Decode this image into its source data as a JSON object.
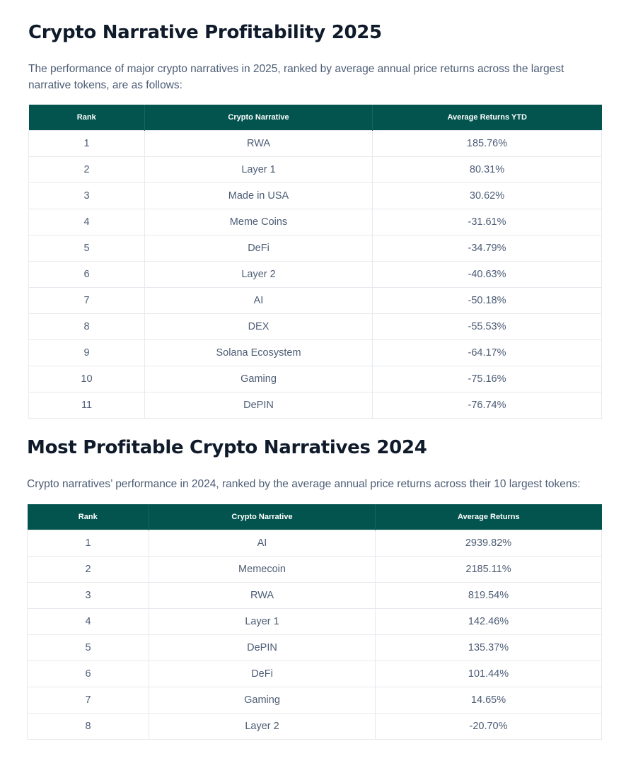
{
  "section1": {
    "title": "Crypto Narrative Profitability 2025",
    "intro": "The performance of major crypto narratives in 2025, ranked by average annual price returns across the largest narrative tokens, are as follows:",
    "headers": [
      "Rank",
      "Crypto Narrative",
      "Average Returns YTD"
    ],
    "rows": [
      {
        "rank": "1",
        "narrative": "RWA",
        "returns": "185.76%"
      },
      {
        "rank": "2",
        "narrative": "Layer 1",
        "returns": "80.31%"
      },
      {
        "rank": "3",
        "narrative": "Made in USA",
        "returns": "30.62%"
      },
      {
        "rank": "4",
        "narrative": "Meme Coins",
        "returns": "-31.61%"
      },
      {
        "rank": "5",
        "narrative": "DeFi",
        "returns": "-34.79%"
      },
      {
        "rank": "6",
        "narrative": "Layer 2",
        "returns": "-40.63%"
      },
      {
        "rank": "7",
        "narrative": "AI",
        "returns": "-50.18%"
      },
      {
        "rank": "8",
        "narrative": "DEX",
        "returns": "-55.53%"
      },
      {
        "rank": "9",
        "narrative": "Solana Ecosystem",
        "returns": "-64.17%"
      },
      {
        "rank": "10",
        "narrative": "Gaming",
        "returns": "-75.16%"
      },
      {
        "rank": "11",
        "narrative": "DePIN",
        "returns": "-76.74%"
      }
    ]
  },
  "section2": {
    "title": "Most Profitable Crypto Narratives 2024",
    "intro": "Crypto narratives’ performance in 2024, ranked by the average annual price returns across their 10 largest tokens:",
    "headers": [
      "Rank",
      "Crypto Narrative",
      "Average Returns"
    ],
    "rows": [
      {
        "rank": "1",
        "narrative": "AI",
        "returns": "2939.82%"
      },
      {
        "rank": "2",
        "narrative": "Memecoin",
        "returns": "2185.11%"
      },
      {
        "rank": "3",
        "narrative": "RWA",
        "returns": "819.54%"
      },
      {
        "rank": "4",
        "narrative": "Layer 1",
        "returns": "142.46%"
      },
      {
        "rank": "5",
        "narrative": "DePIN",
        "returns": "135.37%"
      },
      {
        "rank": "6",
        "narrative": "DeFi",
        "returns": "101.44%"
      },
      {
        "rank": "7",
        "narrative": "Gaming",
        "returns": "14.65%"
      },
      {
        "rank": "8",
        "narrative": "Layer 2",
        "returns": "-20.70%"
      }
    ]
  },
  "colors": {
    "header_bg": "#03544e",
    "header_text": "#ffffff",
    "title": "#0f1a2a",
    "body_text": "#4d5d75",
    "border": "#e6e9ee"
  }
}
